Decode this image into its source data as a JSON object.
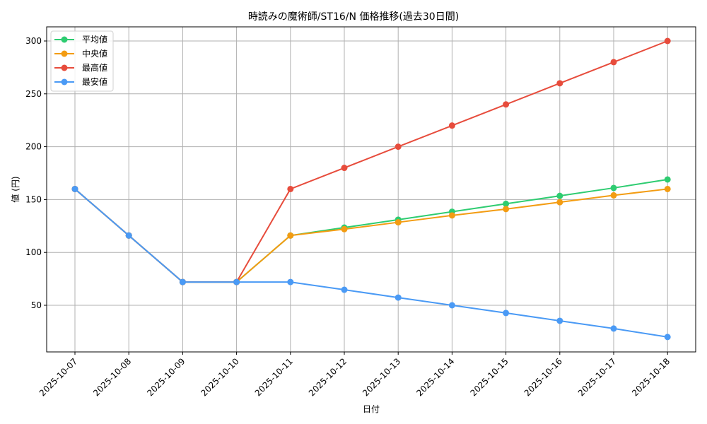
{
  "chart_data": {
    "type": "line",
    "title": "時読みの魔術師/ST16/N 価格推移(過去30日間)",
    "xlabel": "日付",
    "ylabel": "値 (円)",
    "categories": [
      "2025-10-07",
      "2025-10-08",
      "2025-10-09",
      "2025-10-10",
      "2025-10-11",
      "2025-10-12",
      "2025-10-13",
      "2025-10-14",
      "2025-10-15",
      "2025-10-16",
      "2025-10-17",
      "2025-10-18"
    ],
    "series": [
      {
        "name": "平均値",
        "color": "#2ecc71",
        "values": [
          160,
          116,
          72,
          72,
          116,
          123.5,
          131,
          138.5,
          146,
          153.5,
          161,
          169
        ]
      },
      {
        "name": "中央値",
        "color": "#f39c12",
        "values": [
          160,
          116,
          72,
          72,
          116,
          122,
          128.5,
          135,
          141,
          147.5,
          154,
          160
        ]
      },
      {
        "name": "最高値",
        "color": "#e74c3c",
        "values": [
          160,
          116,
          72,
          72,
          160,
          180,
          200,
          220,
          240,
          260,
          280,
          300
        ]
      },
      {
        "name": "最安値",
        "color": "#4a9af5",
        "values": [
          160,
          116,
          72,
          72,
          72,
          64.7,
          57.3,
          50,
          42.7,
          35.3,
          28,
          20
        ]
      }
    ],
    "yticks": [
      50,
      100,
      150,
      200,
      250,
      300
    ],
    "ylim": [
      6,
      314
    ],
    "grid": true,
    "legend_position": "upper left"
  }
}
